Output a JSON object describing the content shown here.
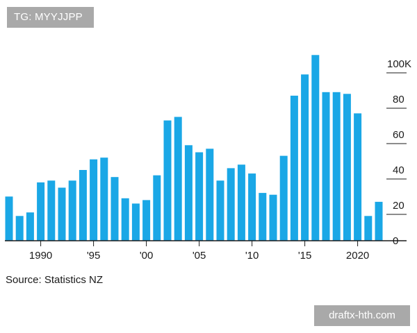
{
  "watermarks": {
    "top": "TG: MYYJJPP",
    "bottom": "draftx-hth.com"
  },
  "source": "Source: Statistics NZ",
  "colors": {
    "bar": "#1aa7e6",
    "axis": "#1a1a1a",
    "grid": "#1a1a1a"
  },
  "chart_data": {
    "type": "bar",
    "title": "",
    "xlabel": "",
    "ylabel": "",
    "x": [
      1987,
      1988,
      1989,
      1990,
      1991,
      1992,
      1993,
      1994,
      1995,
      1996,
      1997,
      1998,
      1999,
      2000,
      2001,
      2002,
      2003,
      2004,
      2005,
      2006,
      2007,
      2008,
      2009,
      2010,
      2011,
      2012,
      2013,
      2014,
      2015,
      2016,
      2017,
      2018,
      2019,
      2020,
      2021,
      2022
    ],
    "values": [
      25,
      14,
      16,
      33,
      34,
      30,
      34,
      40,
      46,
      47,
      36,
      24,
      21,
      23,
      37,
      68,
      70,
      54,
      50,
      52,
      34,
      41,
      43,
      38,
      27,
      26,
      48,
      82,
      94,
      105,
      84,
      84,
      83,
      72,
      14,
      22
    ],
    "ylim": [
      0,
      105
    ],
    "yticks": [
      0,
      20,
      40,
      60,
      80,
      100
    ],
    "ytick_labels": [
      "0",
      "20",
      "40",
      "60",
      "80",
      "100K"
    ],
    "xtick_years": [
      1990,
      1995,
      2000,
      2005,
      2010,
      2015,
      2020
    ],
    "xtick_labels": [
      "1990",
      "'95",
      "'00",
      "'05",
      "'10",
      "'15",
      "2020"
    ],
    "y_axis_position": "right",
    "grid": "short right-side tick lines only",
    "legend": "none"
  }
}
